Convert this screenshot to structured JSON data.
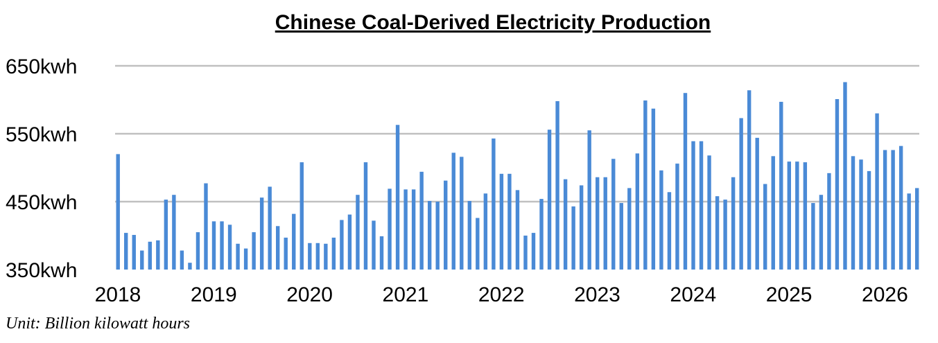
{
  "chart_data": {
    "type": "bar",
    "title": "Chinese Coal-Derived Electricity Production",
    "note": "Unit: Billion kilowatt hours",
    "xlabel": "",
    "ylabel": "",
    "ylim": [
      350,
      650
    ],
    "yticks": [
      {
        "value": 350,
        "label": "350kwh"
      },
      {
        "value": 450,
        "label": "450kwh"
      },
      {
        "value": 550,
        "label": "550kwh"
      },
      {
        "value": 650,
        "label": "650kwh"
      }
    ],
    "xticks": [
      "2018",
      "2019",
      "2020",
      "2021",
      "2022",
      "2023",
      "2024",
      "2025",
      "2026"
    ],
    "grid": true,
    "bar_color": "#4a8ad6",
    "grid_color": "#c0c0c0",
    "series": [
      {
        "values": [
          520,
          404,
          401,
          378,
          391,
          393,
          453,
          460,
          378,
          360,
          405,
          477,
          421,
          421,
          416,
          388,
          381,
          405,
          456,
          472,
          414,
          397,
          432,
          508,
          389,
          389,
          388,
          397,
          423,
          431,
          460,
          508,
          422,
          399,
          469,
          563,
          468,
          468,
          494,
          451,
          450,
          481,
          522,
          516,
          451,
          426,
          462,
          543,
          491,
          491,
          467,
          400,
          404,
          454,
          556,
          598,
          483,
          443,
          474,
          555,
          486,
          486,
          513,
          448,
          470,
          521,
          599,
          587,
          496,
          464,
          506,
          610,
          539,
          539,
          518,
          458,
          453,
          486,
          573,
          614,
          544,
          476,
          517,
          597,
          509,
          509,
          508,
          448,
          460,
          492,
          601,
          626,
          517,
          512,
          495,
          580,
          526,
          526,
          532,
          462,
          470
        ]
      }
    ]
  }
}
